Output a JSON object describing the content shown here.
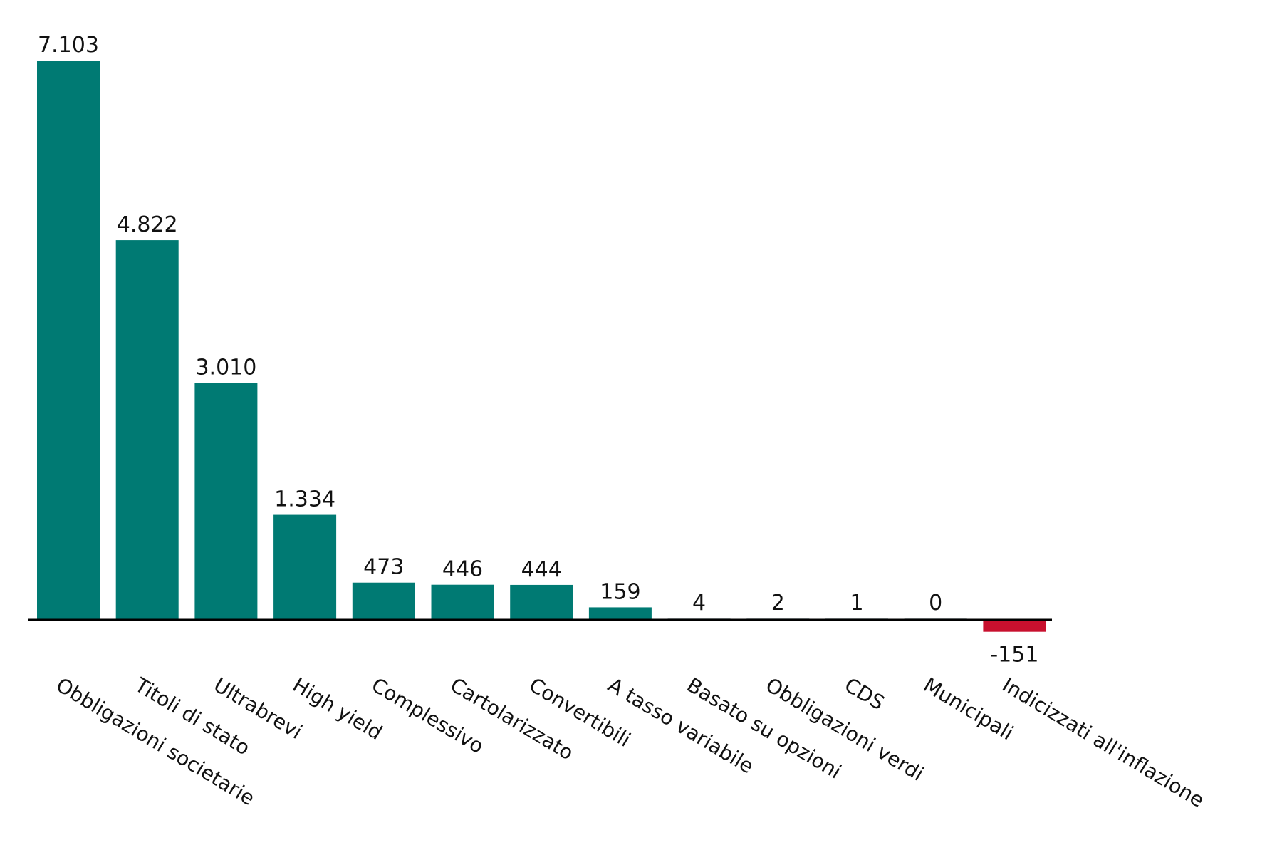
{
  "chart_data": {
    "type": "bar",
    "title": "",
    "xlabel": "",
    "ylabel": "",
    "categories": [
      "Obbligazioni societarie",
      "Titoli di stato",
      "Ultrabrevi",
      "High yield",
      "Complessivo",
      "Cartolarizzato",
      "Convertibili",
      "A tasso variabile",
      "Basato su opzioni",
      "Obbligazioni verdi",
      "CDS",
      "Municipali",
      "Indicizzati all'inflazione"
    ],
    "values": [
      7103,
      4822,
      3010,
      1334,
      473,
      446,
      444,
      159,
      4,
      2,
      1,
      0,
      -151
    ],
    "value_labels": [
      "7.103",
      "4.822",
      "3.010",
      "1.334",
      "473",
      "446",
      "444",
      "159",
      "4",
      "2",
      "1",
      "0",
      "-151"
    ],
    "ylim": [
      -151,
      7103
    ],
    "grid": false,
    "legend": "none",
    "colors": {
      "positive": "#007a73",
      "negative": "#c8102e",
      "axis": "#000000"
    }
  }
}
